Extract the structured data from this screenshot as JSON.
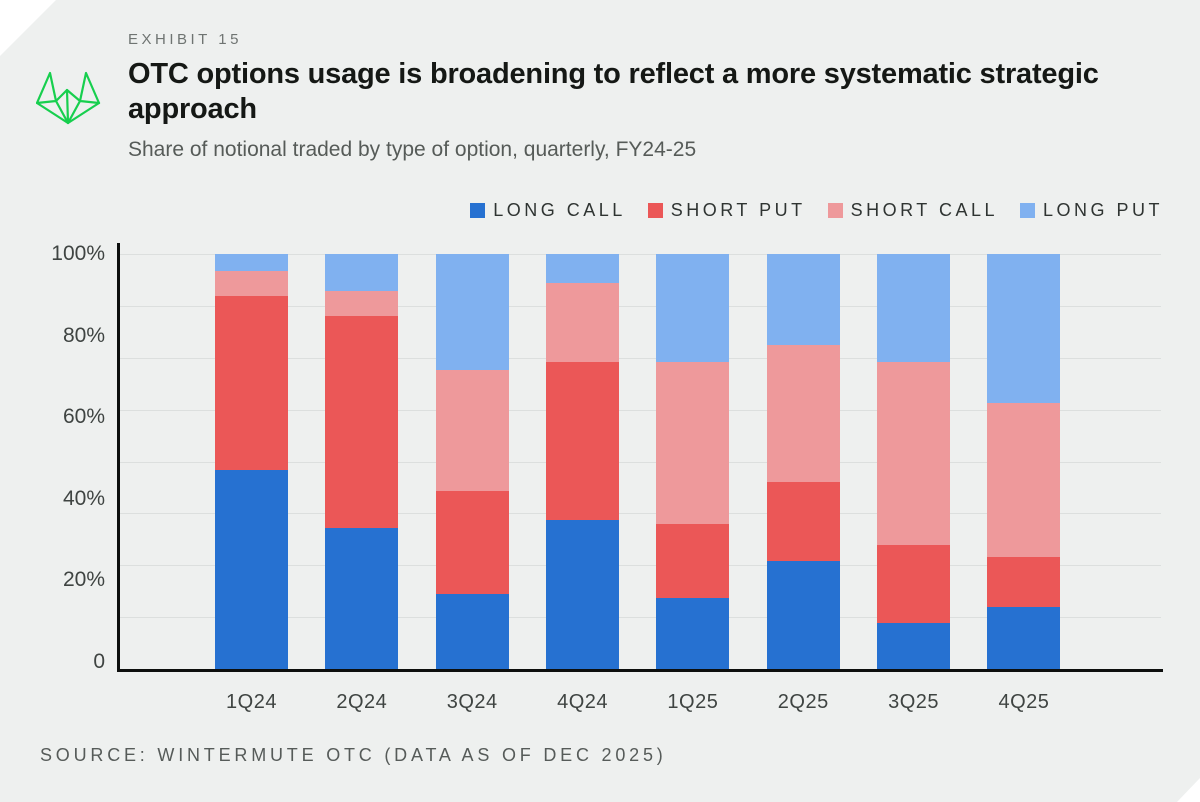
{
  "header": {
    "exhibit_label": "EXHIBIT 15",
    "title_line1": "OTC options usage is broadening to reflect a more systematic strategic",
    "title_line2": "approach",
    "subtitle": "Share of notional traded by type of option, quarterly, FY24-25"
  },
  "footer": {
    "source": "SOURCE: WINTERMUTE OTC (DATA AS OF DEC 2025)"
  },
  "colors": {
    "card_bg": "#eef0ef",
    "logo_green": "#17cf4e",
    "gridline": "#dcdfde",
    "axis": "#0d0f0e",
    "long_call_blue": "#2671d1",
    "short_put_red": "#eb5757",
    "short_call_pink": "#ee999b",
    "long_put_light_blue": "#80b1f0"
  },
  "chart_data": {
    "type": "bar",
    "stacked": true,
    "unit": "percent",
    "title": "Share of notional traded by type of option, quarterly, FY24-25",
    "categories": [
      "1Q24",
      "2Q24",
      "3Q24",
      "4Q24",
      "1Q25",
      "2Q25",
      "3Q25",
      "4Q25"
    ],
    "series": [
      {
        "name": "LONG CALL",
        "color": "#2671d1",
        "values": [
          48,
          34,
          18,
          36,
          17,
          26,
          11,
          15
        ]
      },
      {
        "name": "SHORT PUT",
        "color": "#eb5757",
        "values": [
          42,
          51,
          25,
          38,
          18,
          19,
          19,
          12
        ]
      },
      {
        "name": "SHORT CALL",
        "color": "#ee999b",
        "values": [
          6,
          6,
          29,
          19,
          39,
          33,
          44,
          37
        ]
      },
      {
        "name": "LONG PUT",
        "color": "#80b1f0",
        "values": [
          4,
          9,
          28,
          7,
          26,
          22,
          26,
          36
        ]
      }
    ],
    "ylim": [
      0,
      100
    ],
    "y_tick_labels": [
      "100%",
      "80%",
      "60%",
      "40%",
      "20%",
      "0"
    ],
    "legend_position": "top-right",
    "grid": true,
    "grid_intervals": 8
  }
}
